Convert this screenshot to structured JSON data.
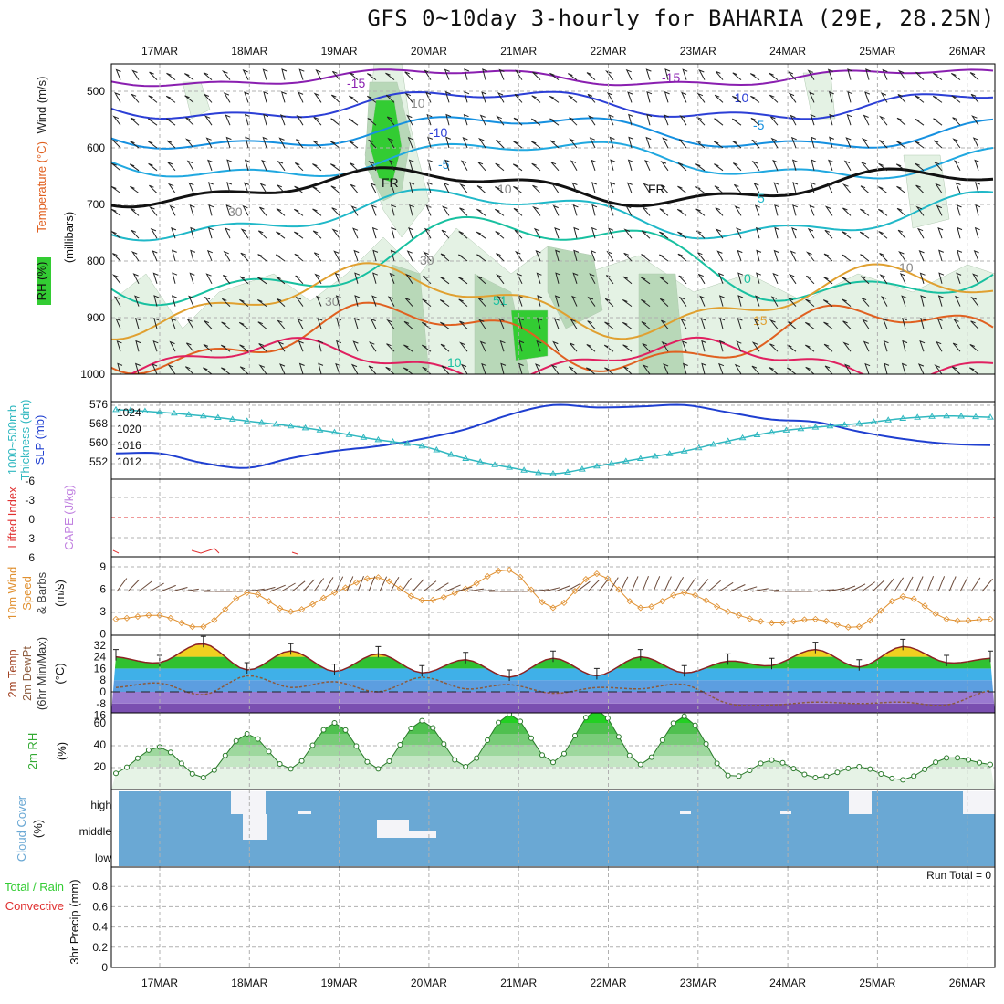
{
  "title": "GFS 0~10day 3-hourly for BAHARIA (29E, 28.25N)",
  "dates": [
    "17MAR",
    "18MAR",
    "19MAR",
    "20MAR",
    "21MAR",
    "22MAR",
    "23MAR",
    "24MAR",
    "25MAR",
    "26MAR"
  ],
  "colors": {
    "grid": "#b0b0b0",
    "rh_light": "#e4f2e4",
    "rh_mid": "#b8d8b8",
    "rh_dark": "#9ab89a",
    "rh_high": "#33cc33",
    "t_minus15": "#8a1fb0",
    "t_minus10": "#2c3fd6",
    "t_minus5": "#1590e0",
    "t_plus5": "#20b8c8",
    "t_plus10": "#18c0a0",
    "t_plus15": "#e0a030",
    "t_warm": "#e06020",
    "t_hot": "#e02060",
    "slp": "#1f3fd0",
    "thickness": "#30b8c0",
    "lifted": "#e03030",
    "cape": "#c080e0",
    "wind10": "#e09030",
    "temp_line": "#8b2222",
    "dewpt": "#8b5a3c",
    "rh2m": "#33aa33",
    "cloud": "#6aa8d4",
    "precip_total": "#33cc33",
    "precip_conv": "#e03030"
  },
  "panels": {
    "upper": {
      "ylabels": [
        "Wind (m/s)",
        "Temperature (°C)",
        "RH (%)",
        "(millibars)"
      ],
      "ticks": [
        "500",
        "600",
        "700",
        "800",
        "900",
        "1000"
      ],
      "contour_labels": [
        "-15",
        "-15",
        "-10",
        "-10",
        "-5",
        "-5",
        "5",
        "0",
        "15",
        "10",
        "FR",
        "FR",
        "10",
        "10",
        "10",
        "30",
        "30",
        "30",
        "51"
      ]
    },
    "slp": {
      "ylabels": [
        "1000~500mb",
        "Thickness (dm)",
        "SLP (mb)"
      ],
      "ticks_left": [
        "576",
        "568",
        "560",
        "552"
      ],
      "ticks_right": [
        "1024",
        "1020",
        "1016",
        "1012"
      ]
    },
    "cape": {
      "ylabels": [
        "Lifted Index",
        "CAPE (J/kg)"
      ],
      "ticks": [
        "-6",
        "-3",
        "0",
        "3",
        "6"
      ]
    },
    "wind10": {
      "ylabels": [
        "10m Wind",
        "Speed",
        "& Barbs",
        "(m/s)"
      ],
      "ticks": [
        "9",
        "6",
        "3",
        "0"
      ]
    },
    "temp2m": {
      "ylabels": [
        "2m Temp",
        "2m DewPt",
        "(6hr Min/Max)",
        "(°C)"
      ],
      "ticks": [
        "32",
        "24",
        "16",
        "8",
        "0",
        "-8",
        "-16"
      ]
    },
    "rh2m": {
      "ylabels": [
        "2m RH",
        "(%)"
      ],
      "ticks": [
        "60",
        "40",
        "20"
      ]
    },
    "cloud": {
      "ylabels": [
        "Cloud Cover",
        "(%)"
      ],
      "levels": [
        "high",
        "middle",
        "low"
      ]
    },
    "precip": {
      "ylabels": [
        "Total / Rain",
        "Convective",
        "3hr Precip (mm)"
      ],
      "ticks": [
        "0.8",
        "0.6",
        "0.4",
        "0.2",
        "0"
      ],
      "tick_labels": [
        "0.8",
        "0.6",
        "0.4",
        "0.2",
        "0"
      ],
      "run_total": "Run Total = 0"
    }
  },
  "chart_data": [
    {
      "type": "line",
      "title": "GFS 0~10day 3-hourly for BAHARIA (29E, 28.25N)",
      "xlabel": "",
      "ylabel": "SLP (mb)",
      "x": [
        "16MAR12",
        "17MAR00",
        "17MAR12",
        "18MAR00",
        "18MAR12",
        "19MAR00",
        "19MAR12",
        "20MAR00",
        "20MAR12",
        "21MAR00",
        "21MAR12",
        "22MAR00",
        "22MAR12",
        "23MAR00",
        "23MAR12",
        "24MAR00",
        "24MAR12",
        "25MAR00",
        "25MAR12",
        "26MAR00",
        "26MAR06"
      ],
      "series": [
        {
          "name": "SLP (mb)",
          "values": [
            1014.5,
            1014.5,
            1012.5,
            1011.5,
            1013.5,
            1015.0,
            1016.0,
            1017.5,
            1019.5,
            1022.5,
            1024.5,
            1024.0,
            1024.2,
            1024.5,
            1023.0,
            1021.5,
            1021.0,
            1019.0,
            1017.5,
            1016.5,
            1016.2
          ]
        },
        {
          "name": "1000~500mb Thickness (dm)",
          "values": [
            573.5,
            572.5,
            571.0,
            569.0,
            567.0,
            564.5,
            561.5,
            559.0,
            554.0,
            550.5,
            548.0,
            551.0,
            554.0,
            557.0,
            561.0,
            564.5,
            566.5,
            568.0,
            570.0,
            571.0,
            570.5
          ]
        }
      ],
      "ylim": [
        1008,
        1028
      ]
    },
    {
      "type": "line",
      "title": "",
      "xlabel": "",
      "ylabel": "Speed (m/s)",
      "x": [
        "16MAR12",
        "17MAR00",
        "17MAR12",
        "18MAR00",
        "18MAR12",
        "19MAR00",
        "19MAR12",
        "20MAR00",
        "20MAR12",
        "21MAR00",
        "21MAR12",
        "22MAR00",
        "22MAR12",
        "23MAR00",
        "23MAR12",
        "24MAR00",
        "24MAR12",
        "25MAR00",
        "25MAR12",
        "26MAR00",
        "26MAR06"
      ],
      "series": [
        {
          "name": "Speed",
          "values": [
            2.0,
            2.5,
            1.0,
            5.5,
            3.0,
            5.5,
            7.5,
            4.5,
            6.0,
            8.5,
            3.5,
            8.0,
            3.5,
            5.5,
            3.0,
            1.5,
            2.0,
            1.0,
            5.0,
            2.0,
            2.0
          ]
        }
      ],
      "ylim": [
        0,
        10
      ]
    },
    {
      "type": "area",
      "title": "",
      "xlabel": "",
      "ylabel": "2m Temp (°C)",
      "x": [
        "16MAR12",
        "17MAR00",
        "17MAR12",
        "18MAR00",
        "18MAR12",
        "19MAR00",
        "19MAR12",
        "20MAR00",
        "20MAR12",
        "21MAR00",
        "21MAR12",
        "22MAR00",
        "22MAR12",
        "23MAR00",
        "23MAR12",
        "24MAR00",
        "24MAR12",
        "25MAR00",
        "25MAR12",
        "26MAR00",
        "26MAR06"
      ],
      "series": [
        {
          "name": "2m Temp",
          "values": [
            24,
            20,
            33,
            15,
            28,
            14,
            26,
            13,
            22,
            10,
            23,
            11,
            24,
            13,
            21,
            18,
            29,
            17,
            31,
            20,
            23
          ]
        },
        {
          "name": "2m DewPt",
          "values": [
            3,
            6,
            -2,
            11,
            3,
            7,
            0,
            10,
            2,
            5,
            -1,
            3,
            2,
            5,
            -8,
            -9,
            -7,
            -8,
            -7,
            -9,
            1
          ]
        }
      ],
      "ylim": [
        -20,
        36
      ]
    },
    {
      "type": "area",
      "title": "",
      "xlabel": "",
      "ylabel": "2m RH (%)",
      "x": [
        "16MAR12",
        "17MAR00",
        "17MAR12",
        "18MAR00",
        "18MAR12",
        "19MAR00",
        "19MAR12",
        "20MAR00",
        "20MAR12",
        "21MAR00",
        "21MAR12",
        "22MAR00",
        "22MAR12",
        "23MAR00",
        "23MAR12",
        "24MAR00",
        "24MAR12",
        "25MAR00",
        "25MAR12",
        "26MAR00",
        "26MAR06"
      ],
      "series": [
        {
          "name": "2m RH",
          "values": [
            14,
            38,
            10,
            50,
            18,
            60,
            18,
            62,
            20,
            68,
            24,
            72,
            22,
            66,
            12,
            26,
            10,
            20,
            8,
            28,
            22
          ]
        }
      ],
      "ylim": [
        0,
        75
      ]
    }
  ]
}
